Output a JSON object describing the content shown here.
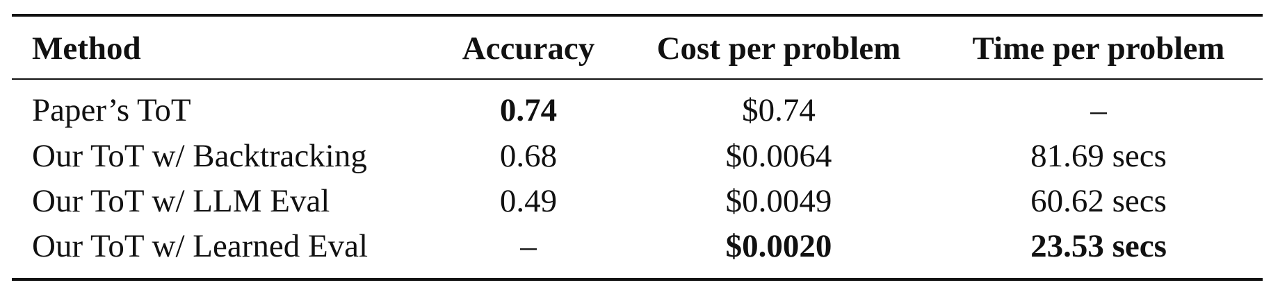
{
  "table": {
    "headers": [
      "Method",
      "Accuracy",
      "Cost per problem",
      "Time per problem"
    ],
    "rows": [
      {
        "method": "Paper’s ToT",
        "accuracy": "0.74",
        "cost": "$0.74",
        "time": "–"
      },
      {
        "method": "Our ToT w/ Backtracking",
        "accuracy": "0.68",
        "cost": "$0.0064",
        "time": "81.69 secs"
      },
      {
        "method": "Our ToT w/ LLM Eval",
        "accuracy": "0.49",
        "cost": "$0.0049",
        "time": "60.62 secs"
      },
      {
        "method": "Our ToT w/ Learned Eval",
        "accuracy": "–",
        "cost": "$0.0020",
        "time": "23.53 secs"
      }
    ]
  }
}
